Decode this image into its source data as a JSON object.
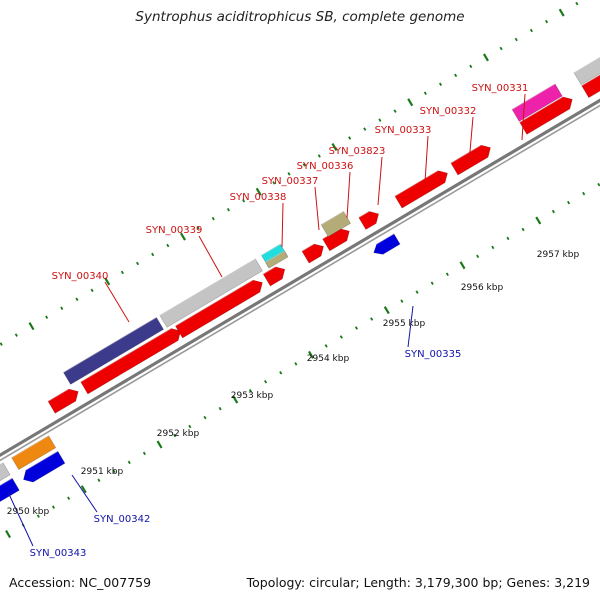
{
  "title": "Syntrophus aciditrophicus SB, complete genome",
  "accession": "Accession: NC_007759",
  "topology": "Topology: circular; Length: 3,179,300 bp; Genes: 3,219",
  "kbp_labels": [
    "2950 kbp",
    "2951 kbp",
    "2952 kbp",
    "2953 kbp",
    "2954 kbp",
    "2955 kbp",
    "2956 kbp",
    "2957 kbp"
  ],
  "gene_labels_plus": [
    "SYN_00340",
    "SYN_00339",
    "SYN_00338",
    "SYN_00337",
    "SYN_00336",
    "SYN_03823",
    "SYN_00333",
    "SYN_00332",
    "SYN_00331"
  ],
  "gene_labels_minus": [
    "SYN_00343",
    "SYN_00342",
    "SYN_00335"
  ],
  "colors": {
    "plus_label": "#cc1111",
    "minus_label": "#1111aa",
    "cds_plus": "#ee0000",
    "cds_minus": "#0000dd",
    "backbone": "#888888",
    "tick": "#1a7a1a",
    "navy": "#3c3a8a",
    "grey": "#c4c4c4",
    "cyan": "#22dddd",
    "khaki": "#b4ac78",
    "magenta": "#ee22aa",
    "orange": "#ee8811"
  }
}
